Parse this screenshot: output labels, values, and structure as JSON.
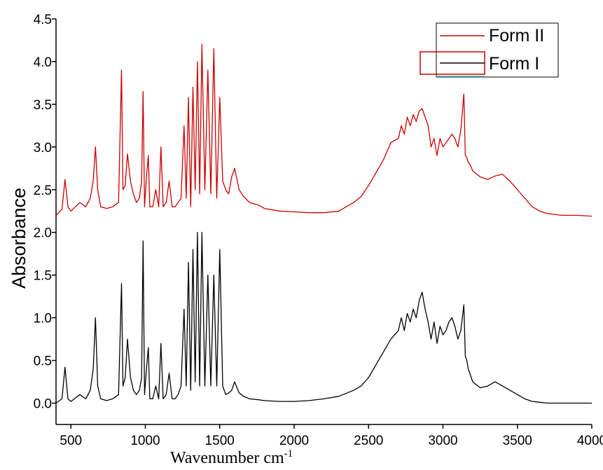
{
  "chart_data": {
    "type": "line",
    "xlabel": "Wavenumber cm",
    "xlabel_superscript": "-1",
    "ylabel": "Absorbance",
    "xlim": [
      400,
      4000
    ],
    "ylim": [
      -0.25,
      4.5
    ],
    "xticks": [
      500,
      1000,
      1500,
      2000,
      2500,
      3000,
      3500,
      4000
    ],
    "yticks": [
      0.0,
      0.5,
      1.0,
      1.5,
      2.0,
      2.5,
      3.0,
      3.5,
      4.0,
      4.5
    ],
    "grid": false,
    "legend_position": "top-right",
    "series": [
      {
        "name": "Form II",
        "color": "#cc0000",
        "x": [
          400,
          440,
          460,
          480,
          500,
          560,
          600,
          630,
          650,
          665,
          680,
          700,
          740,
          780,
          820,
          840,
          850,
          865,
          880,
          900,
          920,
          940,
          960,
          975,
          985,
          995,
          1010,
          1020,
          1030,
          1050,
          1070,
          1090,
          1105,
          1120,
          1140,
          1160,
          1180,
          1200,
          1220,
          1240,
          1260,
          1275,
          1290,
          1305,
          1320,
          1335,
          1350,
          1365,
          1380,
          1400,
          1420,
          1440,
          1460,
          1480,
          1500,
          1520,
          1540,
          1560,
          1580,
          1600,
          1630,
          1660,
          1700,
          1760,
          1800,
          1900,
          2000,
          2100,
          2200,
          2300,
          2400,
          2450,
          2500,
          2550,
          2600,
          2650,
          2700,
          2720,
          2740,
          2760,
          2780,
          2800,
          2820,
          2840,
          2860,
          2880,
          2900,
          2920,
          2940,
          2960,
          2980,
          3000,
          3020,
          3040,
          3060,
          3080,
          3100,
          3120,
          3140,
          3150,
          3160,
          3170,
          3180,
          3200,
          3250,
          3300,
          3350,
          3400,
          3450,
          3500,
          3550,
          3600,
          3650,
          3700,
          3750,
          3800,
          3900,
          4000
        ],
        "y": [
          2.2,
          2.27,
          2.62,
          2.3,
          2.25,
          2.35,
          2.3,
          2.4,
          2.6,
          3.0,
          2.5,
          2.3,
          2.28,
          2.3,
          2.35,
          3.9,
          2.5,
          2.55,
          2.92,
          2.6,
          2.45,
          2.35,
          2.4,
          2.6,
          3.65,
          2.3,
          2.7,
          2.9,
          2.3,
          2.3,
          2.5,
          2.3,
          3.0,
          2.3,
          2.35,
          2.6,
          2.3,
          2.3,
          2.35,
          2.4,
          3.25,
          2.4,
          3.58,
          2.3,
          3.7,
          2.5,
          4.0,
          2.45,
          4.2,
          2.5,
          3.9,
          2.45,
          4.15,
          2.4,
          3.58,
          2.6,
          2.5,
          2.45,
          2.65,
          2.75,
          2.5,
          2.42,
          2.35,
          2.32,
          2.28,
          2.25,
          2.24,
          2.23,
          2.23,
          2.25,
          2.35,
          2.42,
          2.55,
          2.7,
          2.85,
          3.05,
          3.1,
          3.25,
          3.15,
          3.35,
          3.25,
          3.38,
          3.3,
          3.42,
          3.45,
          3.35,
          3.25,
          3.0,
          3.1,
          2.9,
          3.1,
          3.0,
          3.05,
          3.1,
          3.15,
          3.1,
          3.0,
          3.2,
          3.62,
          2.9,
          2.88,
          2.82,
          2.8,
          2.72,
          2.65,
          2.62,
          2.66,
          2.68,
          2.6,
          2.5,
          2.4,
          2.3,
          2.25,
          2.22,
          2.21,
          2.2,
          2.2,
          2.19
        ]
      },
      {
        "name": "Form I",
        "color": "#000000",
        "x": [
          400,
          440,
          460,
          480,
          500,
          560,
          600,
          630,
          650,
          665,
          680,
          700,
          740,
          780,
          820,
          840,
          850,
          865,
          880,
          900,
          920,
          940,
          960,
          975,
          985,
          995,
          1010,
          1020,
          1030,
          1050,
          1070,
          1090,
          1105,
          1120,
          1140,
          1160,
          1180,
          1200,
          1220,
          1240,
          1260,
          1275,
          1290,
          1305,
          1320,
          1335,
          1350,
          1365,
          1380,
          1400,
          1420,
          1440,
          1460,
          1480,
          1500,
          1520,
          1540,
          1560,
          1580,
          1600,
          1630,
          1660,
          1700,
          1760,
          1800,
          1900,
          2000,
          2100,
          2200,
          2300,
          2400,
          2450,
          2500,
          2550,
          2600,
          2650,
          2700,
          2720,
          2740,
          2760,
          2780,
          2800,
          2820,
          2840,
          2860,
          2880,
          2900,
          2920,
          2940,
          2960,
          2980,
          3000,
          3020,
          3040,
          3060,
          3080,
          3100,
          3120,
          3140,
          3150,
          3160,
          3170,
          3180,
          3200,
          3250,
          3300,
          3350,
          3400,
          3450,
          3500,
          3550,
          3600,
          3650,
          3700,
          3750,
          3800,
          3900,
          4000
        ],
        "y": [
          0.0,
          0.05,
          0.42,
          0.05,
          0.02,
          0.1,
          0.05,
          0.15,
          0.4,
          1.0,
          0.2,
          0.05,
          0.03,
          0.05,
          0.1,
          1.4,
          0.2,
          0.3,
          0.75,
          0.3,
          0.15,
          0.1,
          0.15,
          0.3,
          1.9,
          0.1,
          0.45,
          0.65,
          0.05,
          0.05,
          0.2,
          0.05,
          0.7,
          0.05,
          0.1,
          0.35,
          0.05,
          0.05,
          0.1,
          0.2,
          1.1,
          0.2,
          1.65,
          0.15,
          1.8,
          0.25,
          2.0,
          0.2,
          2.0,
          0.2,
          1.5,
          0.2,
          1.5,
          0.2,
          1.8,
          0.2,
          0.1,
          0.12,
          0.15,
          0.25,
          0.12,
          0.08,
          0.05,
          0.04,
          0.03,
          0.02,
          0.02,
          0.03,
          0.05,
          0.08,
          0.15,
          0.2,
          0.3,
          0.45,
          0.6,
          0.75,
          0.85,
          1.0,
          0.85,
          1.05,
          0.95,
          1.1,
          1.0,
          1.2,
          1.3,
          1.1,
          0.95,
          0.75,
          0.95,
          0.7,
          0.9,
          0.8,
          0.85,
          0.95,
          1.0,
          0.9,
          0.75,
          0.85,
          1.15,
          0.55,
          0.5,
          0.4,
          0.35,
          0.25,
          0.18,
          0.2,
          0.25,
          0.2,
          0.15,
          0.1,
          0.05,
          0.02,
          0.01,
          0.0,
          0.0,
          0.0,
          0.0,
          0.0
        ]
      }
    ]
  }
}
